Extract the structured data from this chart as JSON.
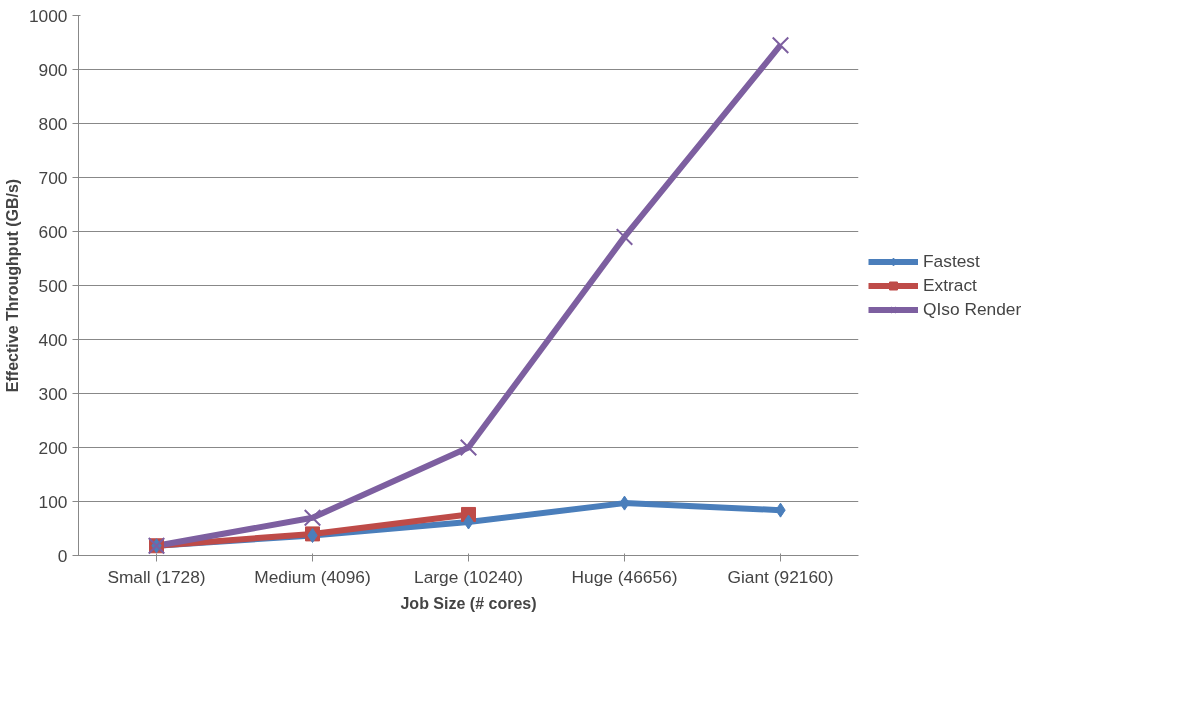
{
  "chart_data": {
    "type": "line",
    "xlabel": "Job Size (# cores)",
    "ylabel": "Effective Throughput (GB/s)",
    "categories": [
      "Small (1728)",
      "Medium (4096)",
      "Large (10240)",
      "Huge (46656)",
      "Giant (92160)"
    ],
    "series": [
      {
        "name": "Fastest",
        "color": "#4a7ebb",
        "marker": "diamond",
        "values": [
          18,
          37,
          62,
          97,
          84
        ]
      },
      {
        "name": "Extract",
        "color": "#be4b48",
        "marker": "square",
        "values": [
          18,
          40,
          76,
          null,
          null
        ]
      },
      {
        "name": "QIso Render",
        "color": "#7d5fa0",
        "marker": "cross",
        "values": [
          18,
          70,
          200,
          590,
          945
        ]
      }
    ],
    "ylim": [
      0,
      1000
    ],
    "yticks": [
      0,
      100,
      200,
      300,
      400,
      500,
      600,
      700,
      800,
      900,
      1000
    ],
    "grid": "y",
    "legend": "right",
    "line_style": "solid"
  }
}
